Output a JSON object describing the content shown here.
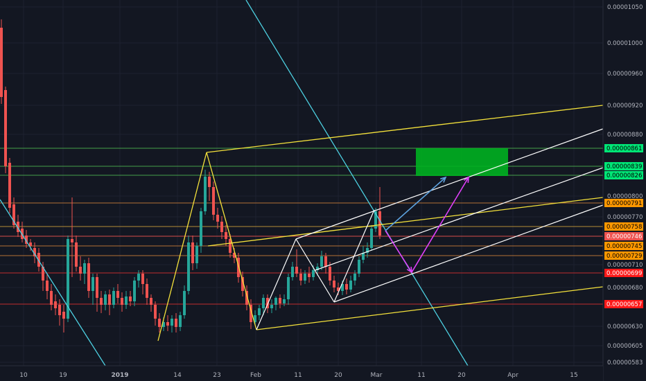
{
  "chart_data": {
    "type": "candlestick",
    "x_ticks": [
      "10",
      "19",
      "2019",
      "14",
      "23",
      "Feb",
      "11",
      "20",
      "Mar",
      "11",
      "20",
      "Apr",
      "15"
    ],
    "y_ticks": [
      "0.00001050",
      "0.00001000",
      "0.00000960",
      "0.00000920",
      "0.00000880",
      "0.00000800",
      "0.00000770",
      "0.00000710",
      "0.00000680",
      "0.00000630",
      "0.00000605",
      "0.00000583"
    ],
    "price_levels": [
      {
        "label": "0.00000861",
        "value": 8.61e-06,
        "color": "#00e676",
        "line": "#4caf50"
      },
      {
        "label": "0.00000839",
        "value": 8.39e-06,
        "color": "#00e676",
        "line": "#4caf50"
      },
      {
        "label": "0.00000826",
        "value": 8.26e-06,
        "color": "#00e676",
        "line": "#4caf50"
      },
      {
        "label": "0.00000791",
        "value": 7.91e-06,
        "color": "#ff9800",
        "line": "#c77b3a"
      },
      {
        "label": "0.00000758",
        "value": 7.58e-06,
        "color": "#ff9800",
        "line": "#c79a3a"
      },
      {
        "label": "0.00000746",
        "value": 7.46e-06,
        "color": "#ef5350",
        "line": "#ef5350"
      },
      {
        "label": "0.00000745",
        "value": 7.45e-06,
        "color": "#ff9800",
        "line": "#c77b3a"
      },
      {
        "label": "0.00000729",
        "value": 7.29e-06,
        "color": "#ff9800",
        "line": "#c77b3a"
      },
      {
        "label": "0.00000699",
        "value": 6.99e-06,
        "color": "#ff1a1a",
        "line": "#d32f2f"
      },
      {
        "label": "0.00000657",
        "value": 6.57e-06,
        "color": "#ff1a1a",
        "line": "#d32f2f"
      }
    ],
    "colors": {
      "background": "#131722",
      "grid": "#1e2230",
      "up": "#26a69a",
      "down": "#ef5350",
      "yellow": "#f5e23b",
      "white": "#ffffff",
      "cyan": "#4dd0e1",
      "magenta": "#e040fb",
      "blue_arrow": "#5ea3e0",
      "target_zone": "#00b020"
    }
  }
}
